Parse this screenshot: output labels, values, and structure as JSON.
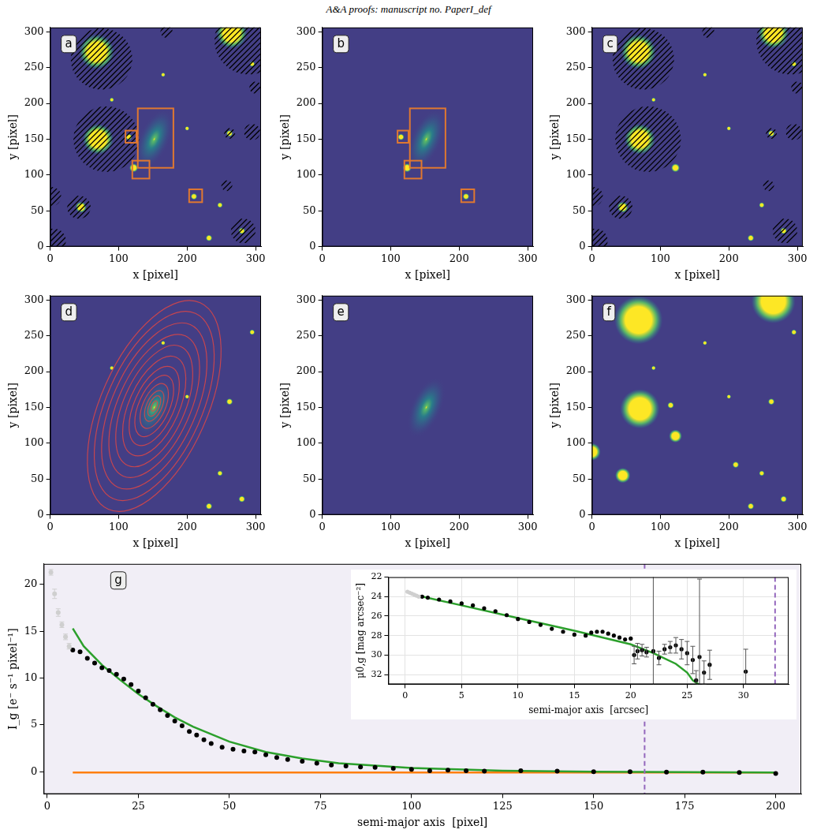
{
  "header": "A&A proofs: manuscript no. PaperI_def",
  "chart_data": [
    {
      "type": "image",
      "label": "a",
      "xlabel": "x [pixel]",
      "ylabel": "y [pixel]",
      "xlim": [
        0,
        308
      ],
      "ylim": [
        0,
        306
      ],
      "xticks": [
        0,
        100,
        200,
        300
      ],
      "yticks": [
        0,
        50,
        100,
        150,
        200,
        250,
        300
      ],
      "galaxy": {
        "x": 152,
        "y": 150,
        "sma": 48,
        "ellipticity": 0.55,
        "pa": 66
      },
      "sources": [
        [
          68,
          272,
          16
        ],
        [
          265,
          298,
          14
        ],
        [
          70,
          150,
          14
        ],
        [
          122,
          110,
          4
        ],
        [
          45,
          55,
          5
        ],
        [
          115,
          153,
          3
        ],
        [
          210,
          70,
          3
        ],
        [
          262,
          158,
          3
        ],
        [
          248,
          58,
          2.5
        ],
        [
          232,
          12,
          3
        ],
        [
          280,
          22,
          3
        ],
        [
          295,
          255,
          2.5
        ],
        [
          165,
          240,
          2
        ],
        [
          200,
          165,
          2
        ],
        [
          90,
          205,
          2
        ]
      ],
      "masks": [
        [
          75,
          262,
          45
        ],
        [
          290,
          288,
          50
        ],
        [
          82,
          150,
          48
        ],
        [
          42,
          55,
          17
        ],
        [
          2,
          70,
          14
        ],
        [
          5,
          8,
          18
        ],
        [
          282,
          22,
          18
        ],
        [
          295,
          160,
          12
        ],
        [
          300,
          222,
          9
        ],
        [
          258,
          85,
          8
        ],
        [
          262,
          158,
          8
        ],
        [
          170,
          300,
          9
        ]
      ],
      "boxes": [
        [
          110,
          145,
          126,
          162
        ],
        [
          128,
          110,
          180,
          193
        ],
        [
          120,
          95,
          145,
          120
        ],
        [
          203,
          62,
          222,
          80
        ]
      ]
    },
    {
      "type": "image",
      "label": "b",
      "xlabel": "x [pixel]",
      "ylabel": "y [pixel]",
      "xlim": [
        0,
        308
      ],
      "ylim": [
        0,
        306
      ],
      "xticks": [
        0,
        100,
        200,
        300
      ],
      "yticks": [
        0,
        50,
        100,
        150,
        200,
        250,
        300
      ],
      "galaxy": {
        "x": 152,
        "y": 150,
        "sma": 48,
        "ellipticity": 0.55,
        "pa": 66
      },
      "sources": [
        [
          115,
          153,
          3
        ],
        [
          124,
          110,
          4
        ],
        [
          210,
          70,
          3
        ]
      ],
      "boxes": [
        [
          110,
          145,
          126,
          162
        ],
        [
          128,
          110,
          180,
          193
        ],
        [
          120,
          95,
          145,
          120
        ],
        [
          203,
          62,
          222,
          80
        ]
      ]
    },
    {
      "type": "image",
      "label": "c",
      "xlabel": "x [pixel]",
      "ylabel": "y [pixel]",
      "xlim": [
        0,
        308
      ],
      "ylim": [
        0,
        306
      ],
      "xticks": [
        0,
        100,
        200,
        300
      ],
      "yticks": [
        0,
        50,
        100,
        150,
        200,
        250,
        300
      ],
      "sources": [
        [
          68,
          272,
          16
        ],
        [
          265,
          298,
          14
        ],
        [
          70,
          150,
          14
        ],
        [
          122,
          110,
          4
        ],
        [
          45,
          55,
          5
        ],
        [
          262,
          158,
          3
        ],
        [
          248,
          58,
          2.5
        ],
        [
          232,
          12,
          3
        ],
        [
          280,
          22,
          3
        ],
        [
          295,
          255,
          2.5
        ],
        [
          165,
          240,
          2
        ],
        [
          200,
          165,
          2
        ],
        [
          90,
          205,
          2
        ]
      ],
      "masks": [
        [
          75,
          262,
          45
        ],
        [
          290,
          288,
          50
        ],
        [
          82,
          150,
          48
        ],
        [
          42,
          55,
          17
        ],
        [
          2,
          70,
          14
        ],
        [
          5,
          8,
          18
        ],
        [
          282,
          22,
          18
        ],
        [
          295,
          160,
          12
        ],
        [
          300,
          222,
          9
        ],
        [
          258,
          85,
          8
        ],
        [
          262,
          158,
          8
        ],
        [
          170,
          300,
          9
        ]
      ]
    },
    {
      "type": "image",
      "label": "d",
      "xlabel": "x [pixel]",
      "ylabel": "y [pixel]",
      "xlim": [
        0,
        308
      ],
      "ylim": [
        0,
        306
      ],
      "xticks": [
        0,
        100,
        200,
        300
      ],
      "yticks": [
        0,
        50,
        100,
        150,
        200,
        250,
        300
      ],
      "galaxy": {
        "x": 152,
        "y": 150,
        "sma": 48,
        "ellipticity": 0.55,
        "pa": 66
      },
      "sources": [
        [
          262,
          158,
          3
        ],
        [
          248,
          58,
          2.5
        ],
        [
          232,
          12,
          3
        ],
        [
          280,
          22,
          3
        ],
        [
          295,
          255,
          2.5
        ],
        [
          165,
          240,
          2
        ],
        [
          200,
          165,
          2
        ],
        [
          90,
          205,
          2
        ]
      ],
      "contours": {
        "x": 152,
        "y": 152,
        "ellipticity": 0.55,
        "pa": 66,
        "sma": [
          8,
          16,
          24,
          35,
          48,
          62,
          78,
          95,
          112,
          130,
          148,
          165
        ]
      }
    },
    {
      "type": "image",
      "label": "e",
      "xlabel": "x [pixel]",
      "ylabel": "y [pixel]",
      "xlim": [
        0,
        308
      ],
      "ylim": [
        0,
        306
      ],
      "xticks": [
        0,
        100,
        200,
        300
      ],
      "yticks": [
        0,
        50,
        100,
        150,
        200,
        250,
        300
      ],
      "galaxy": {
        "x": 152,
        "y": 150,
        "sma": 48,
        "ellipticity": 0.55,
        "pa": 66
      }
    },
    {
      "type": "image",
      "label": "f",
      "xlabel": "x [pixel]",
      "ylabel": "y [pixel]",
      "xlim": [
        0,
        308
      ],
      "ylim": [
        0,
        306
      ],
      "xticks": [
        0,
        100,
        200,
        300
      ],
      "yticks": [
        0,
        50,
        100,
        150,
        200,
        250,
        300
      ],
      "sources": [
        [
          68,
          272,
          22
        ],
        [
          265,
          298,
          20
        ],
        [
          70,
          148,
          18
        ],
        [
          122,
          110,
          6
        ],
        [
          45,
          55,
          7
        ],
        [
          115,
          153,
          3
        ],
        [
          210,
          70,
          3
        ],
        [
          0,
          88,
          8
        ],
        [
          262,
          158,
          3
        ],
        [
          248,
          58,
          2.5
        ],
        [
          232,
          12,
          3
        ],
        [
          280,
          22,
          3
        ],
        [
          295,
          255,
          2.5
        ],
        [
          165,
          240,
          2
        ],
        [
          200,
          165,
          2
        ],
        [
          90,
          205,
          2
        ]
      ]
    },
    {
      "type": "scatter",
      "label": "g",
      "xlabel": "semi-major axis  [pixel]",
      "ylabel": "I_g [e⁻ s⁻¹ pixel⁻¹]",
      "xlim": [
        -1,
        207
      ],
      "ylim": [
        -2.4,
        22.2
      ],
      "xticks": [
        0,
        25,
        50,
        75,
        100,
        125,
        150,
        175,
        200
      ],
      "yticks": [
        0,
        5,
        10,
        15,
        20
      ],
      "grid": false,
      "vlines": [
        164
      ],
      "series": [
        {
          "color": "#cfcfcf",
          "marker": "circle",
          "line_style": "none",
          "x": [
            1,
            2,
            3,
            4,
            5,
            6
          ],
          "values": [
            21.3,
            19.0,
            17.0,
            15.7,
            14.4,
            13.4
          ],
          "errors": [
            0.3,
            0.5,
            0.4,
            0.3,
            0.3,
            0.3
          ]
        },
        {
          "color": "#000000",
          "marker": "circle",
          "line_style": "none",
          "x": [
            7,
            9,
            11,
            13,
            15,
            17,
            19,
            21,
            23,
            25,
            27,
            29,
            31,
            33,
            35,
            37,
            39,
            41,
            43,
            45,
            48,
            51,
            54,
            57,
            60,
            63,
            66,
            70,
            74,
            78,
            82,
            86,
            90,
            95,
            100,
            105,
            110,
            115,
            120,
            130,
            140,
            150,
            160,
            170,
            180,
            190,
            200
          ],
          "values": [
            13.0,
            12.8,
            12.1,
            11.6,
            11.1,
            10.8,
            10.4,
            9.9,
            9.3,
            8.6,
            7.9,
            7.2,
            6.6,
            6.0,
            5.4,
            4.9,
            4.3,
            3.9,
            3.4,
            3.0,
            2.6,
            2.4,
            2.2,
            2.1,
            1.8,
            1.5,
            1.3,
            1.1,
            0.9,
            0.7,
            0.6,
            0.5,
            0.45,
            0.35,
            0.25,
            0.1,
            0.15,
            0.1,
            0.05,
            0.1,
            0.05,
            0.0,
            0.0,
            -0.05,
            -0.05,
            -0.1,
            -0.2
          ]
        },
        {
          "color": "#2ca02c",
          "marker": "none",
          "line_style": "solid",
          "x": [
            7,
            10,
            15,
            20,
            25,
            30,
            35,
            40,
            50,
            60,
            70,
            80,
            100,
            125,
            150,
            175,
            200
          ],
          "values": [
            15.3,
            13.4,
            11.4,
            9.8,
            8.3,
            7.0,
            5.8,
            4.8,
            3.2,
            2.1,
            1.4,
            0.9,
            0.4,
            0.1,
            0.0,
            -0.05,
            -0.1
          ]
        },
        {
          "color": "#ff7f0e",
          "marker": "none",
          "line_style": "solid",
          "x": [
            7,
            200
          ],
          "values": [
            -0.1,
            -0.1
          ]
        }
      ]
    },
    {
      "type": "scatter",
      "xlabel": "semi-major axis  [arcsec]",
      "ylabel": "μ0,g [mag arcsec⁻²]",
      "xlim": [
        -1.5,
        34
      ],
      "ylim": [
        33,
        22
      ],
      "xticks": [
        0,
        5,
        10,
        15,
        20,
        25,
        30
      ],
      "yticks": [
        22,
        24,
        26,
        28,
        30,
        32
      ],
      "grid": true,
      "vlines": [
        32.8
      ],
      "series": [
        {
          "color": "#cfcfcf",
          "marker": "circle",
          "line_style": "none",
          "x": [
            0.2,
            0.4,
            0.6,
            0.8,
            1.0,
            1.2
          ],
          "values": [
            23.5,
            23.6,
            23.7,
            23.8,
            23.9,
            24.0
          ]
        },
        {
          "color": "#000000",
          "marker": "circle",
          "line_style": "none",
          "x": [
            1.5,
            2,
            3,
            4,
            5,
            6,
            7,
            8,
            9,
            10,
            11,
            12,
            13,
            14,
            15,
            16,
            16.5,
            17,
            17.5,
            18,
            18.5,
            19,
            19.5,
            20,
            20.3,
            20.6,
            21,
            21.4,
            22,
            22.5,
            23,
            23.5,
            24,
            24.5,
            25,
            25.5,
            25.8,
            26.1,
            26.5,
            27,
            30.2
          ],
          "values": [
            24.0,
            24.1,
            24.3,
            24.5,
            24.7,
            24.9,
            25.2,
            25.5,
            25.9,
            26.3,
            26.6,
            26.9,
            27.3,
            27.6,
            27.9,
            28.0,
            27.7,
            27.6,
            27.6,
            27.8,
            28.0,
            28.2,
            28.4,
            28.3,
            30.0,
            29.6,
            29.5,
            29.7,
            29.6,
            30.3,
            29.4,
            29.2,
            29.0,
            29.4,
            29.8,
            30.5,
            32.6,
            30.2,
            31.8,
            31.0,
            31.7
          ],
          "errors": [
            0,
            0,
            0,
            0,
            0,
            0,
            0,
            0,
            0,
            0,
            0,
            0,
            0,
            0,
            0,
            0,
            0,
            0,
            0,
            0,
            0,
            0,
            0,
            0,
            0.9,
            0.8,
            0.6,
            0.5,
            8,
            0.7,
            0.5,
            0.6,
            0.8,
            1.0,
            1.2,
            1.4,
            1.0,
            8,
            1.2,
            1.5,
            2.3
          ]
        },
        {
          "color": "#2ca02c",
          "marker": "none",
          "line_style": "solid",
          "x": [
            1.5,
            5,
            10,
            15,
            20,
            22,
            24,
            25,
            25.5,
            26
          ],
          "values": [
            24.0,
            24.9,
            26.2,
            27.5,
            28.9,
            29.8,
            30.9,
            31.8,
            32.6,
            33.0
          ]
        }
      ]
    }
  ]
}
